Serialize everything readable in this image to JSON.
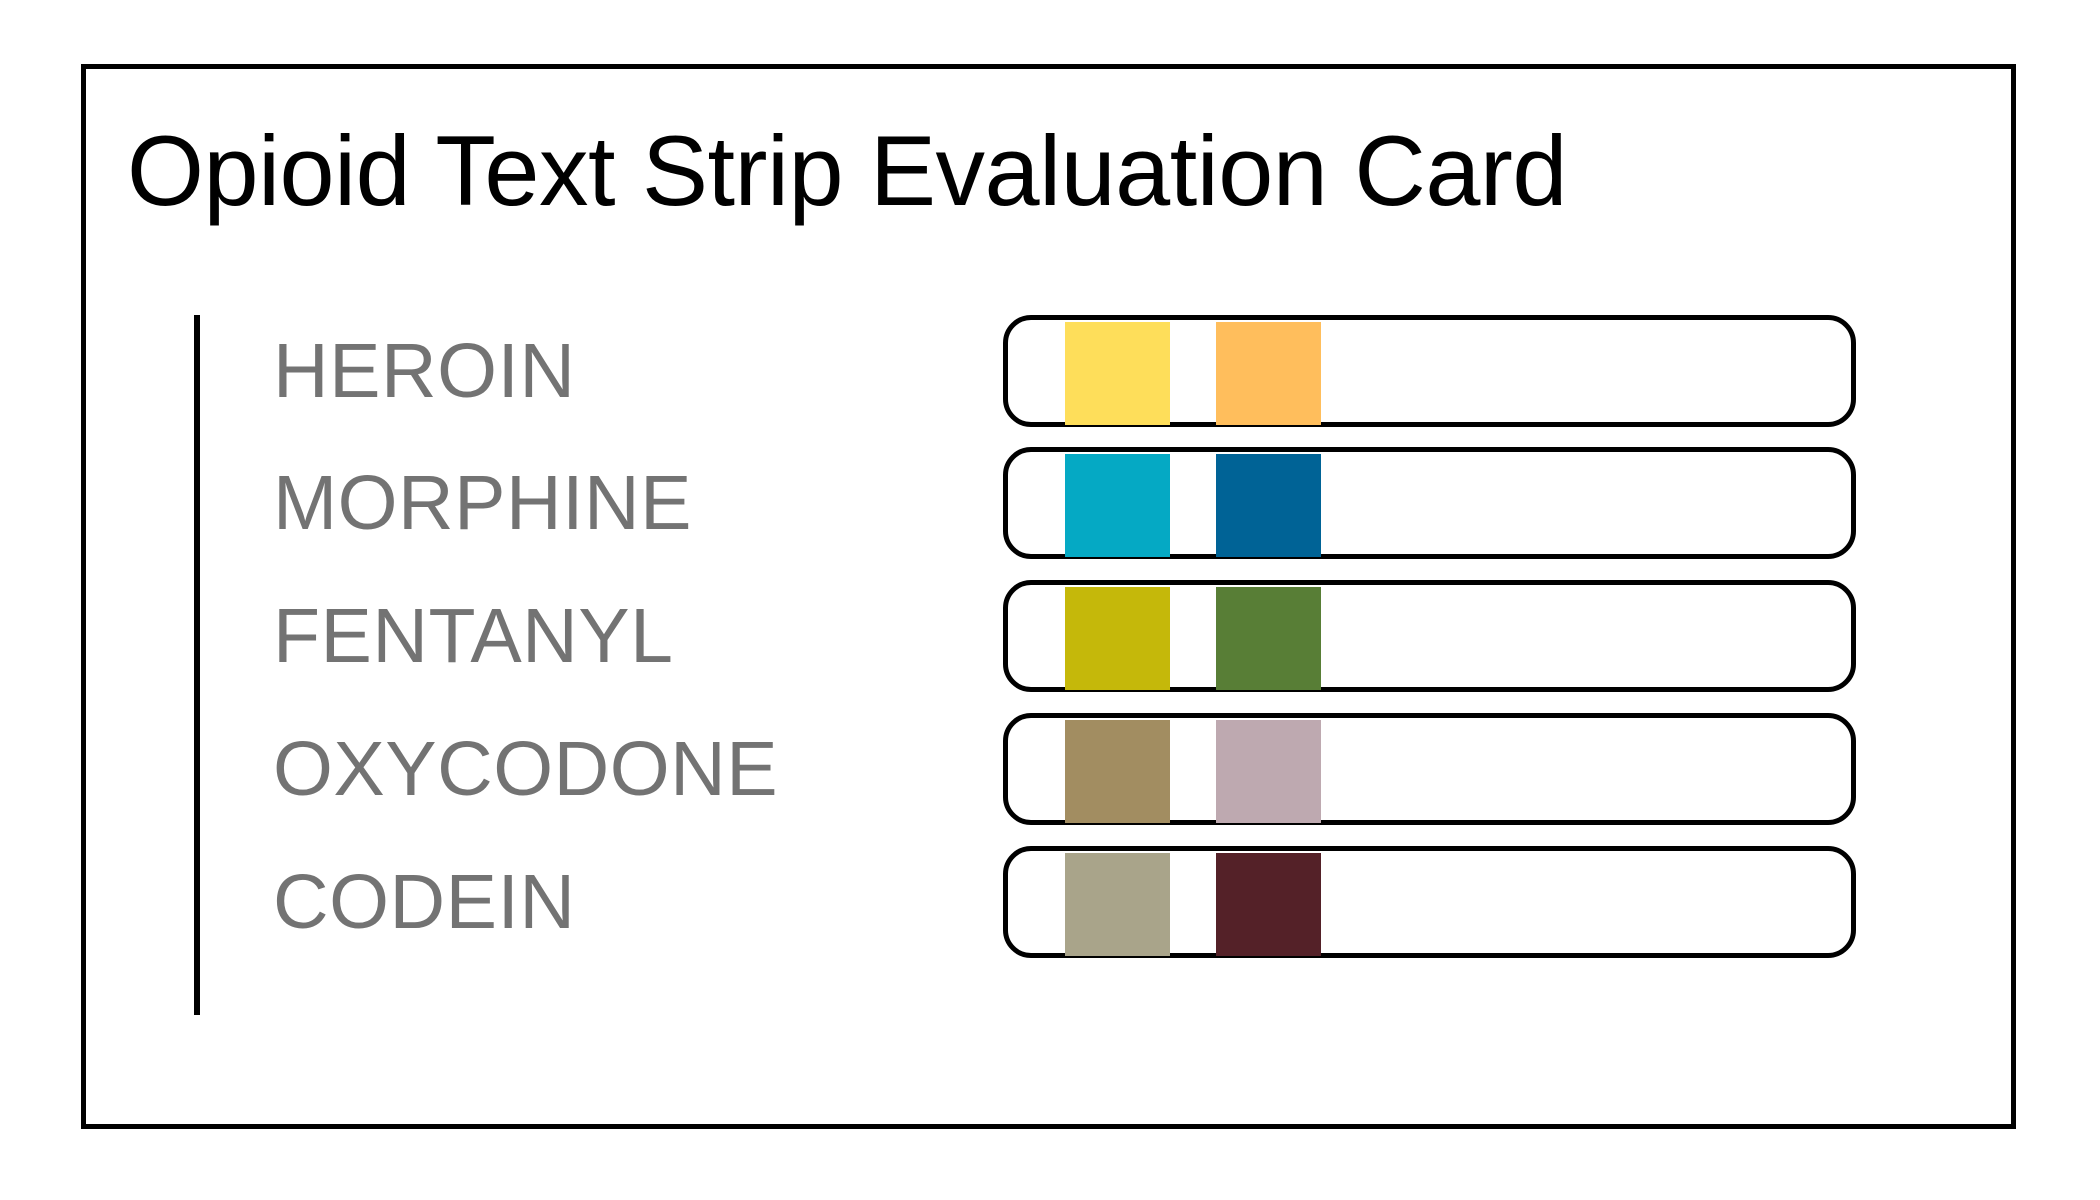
{
  "title": "Opioid Text Strip Evaluation Card",
  "rows": [
    {
      "label": "HEROIN",
      "colors": [
        "#FEDE5A",
        "#FFBE5C"
      ]
    },
    {
      "label": "MORPHINE",
      "colors": [
        "#05A9C4",
        "#006396"
      ]
    },
    {
      "label": "FENTANYL",
      "colors": [
        "#C5B80A",
        "#587E36"
      ]
    },
    {
      "label": "OXYCODONE",
      "colors": [
        "#A28D61",
        "#BEA9B0"
      ]
    },
    {
      "label": "CODEIN",
      "colors": [
        "#A9A48A",
        "#542128"
      ]
    }
  ]
}
